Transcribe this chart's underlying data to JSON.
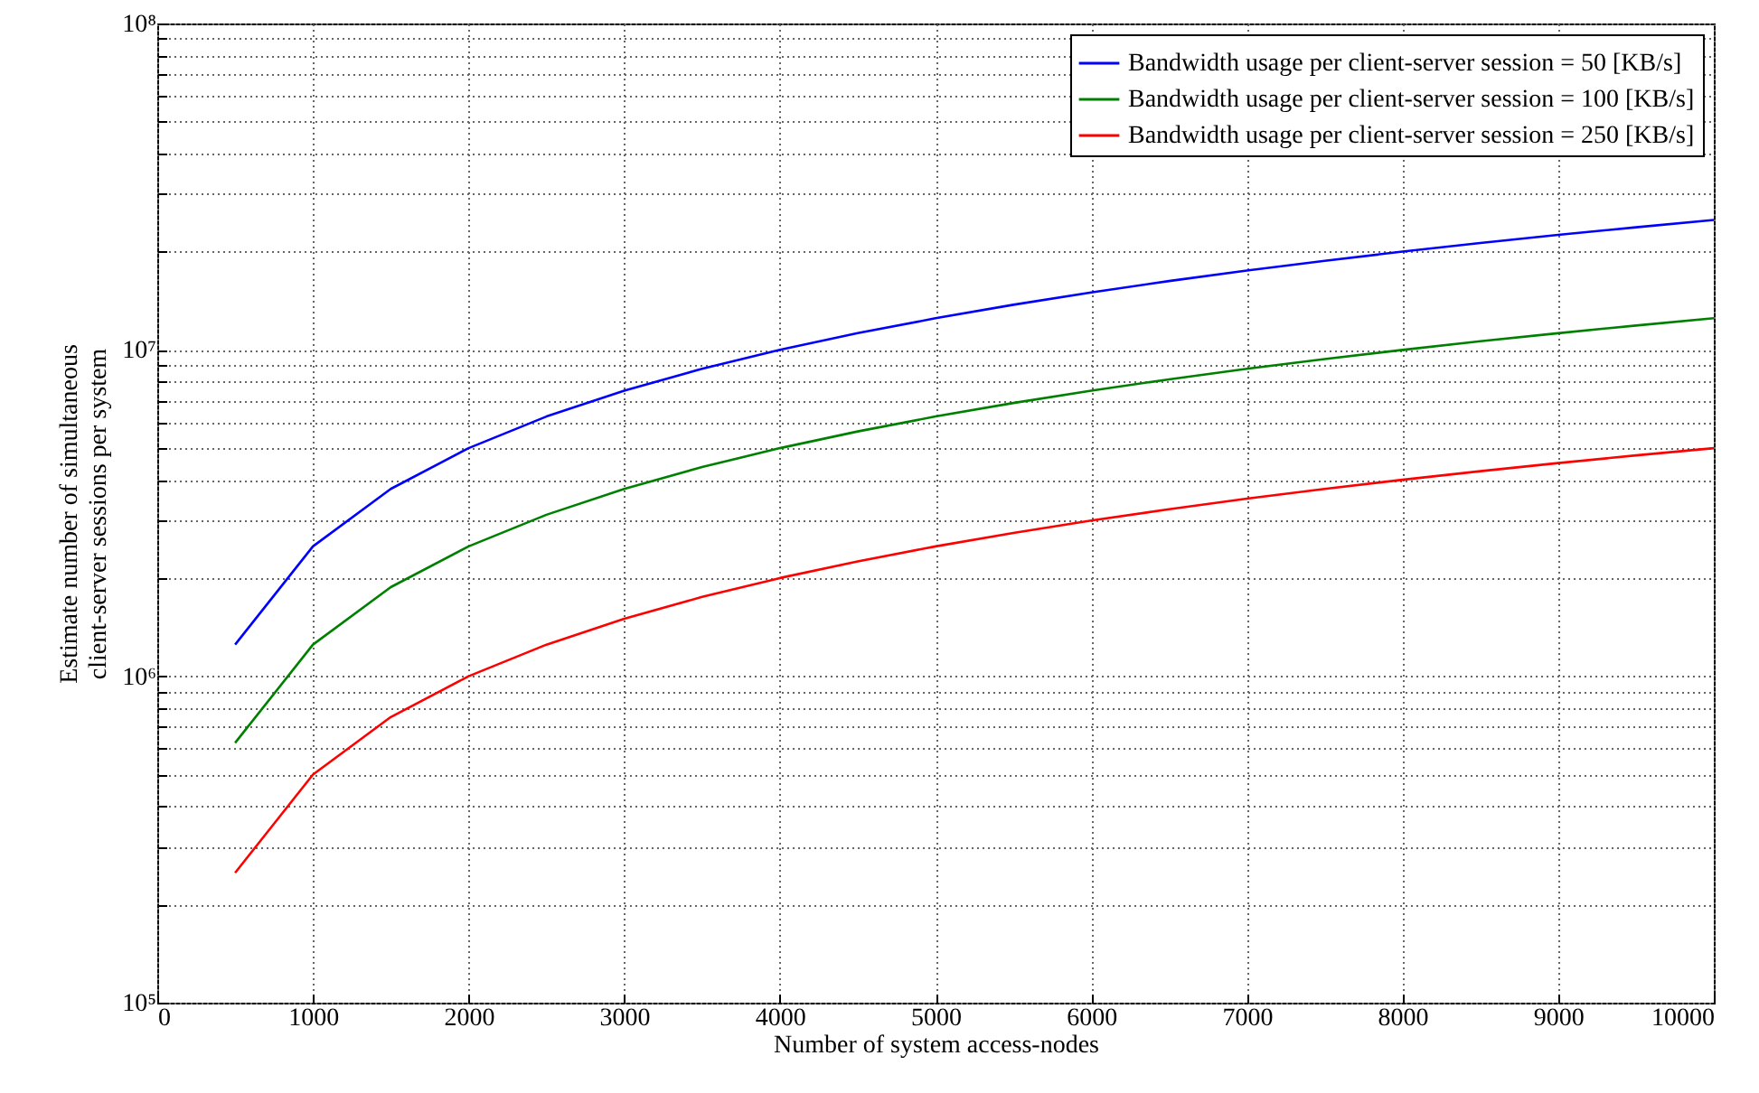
{
  "chart_data": {
    "type": "line",
    "xlabel": "Number of system access-nodes",
    "ylabel": "Estimate number of simultaneous\nclient-server sessions per system",
    "x": [
      500,
      1000,
      1500,
      2000,
      2500,
      3000,
      3500,
      4000,
      4500,
      5000,
      5500,
      6000,
      6500,
      7000,
      7500,
      8000,
      8500,
      9000,
      9500,
      10000
    ],
    "series": [
      {
        "name": "Bandwidth usage per client-server session = 50 [KB/s]",
        "color": "#0000ff",
        "values": [
          1250000,
          2500000,
          3750000,
          5000000,
          6250000,
          7500000,
          8750000,
          10000000,
          11250000,
          12500000,
          13750000,
          15000000,
          16250000,
          17500000,
          18750000,
          20000000,
          21250000,
          22500000,
          23750000,
          25000000
        ]
      },
      {
        "name": "Bandwidth usage per client-server session = 100 [KB/s]",
        "color": "#008000",
        "values": [
          625000,
          1250000,
          1875000,
          2500000,
          3125000,
          3750000,
          4375000,
          5000000,
          5625000,
          6250000,
          6875000,
          7500000,
          8125000,
          8750000,
          9375000,
          10000000,
          10625000,
          11250000,
          11875000,
          12500000
        ]
      },
      {
        "name": "Bandwidth usage per client-server session = 250 [KB/s]",
        "color": "#ff0000",
        "values": [
          250000,
          500000,
          750000,
          1000000,
          1250000,
          1500000,
          1750000,
          2000000,
          2250000,
          2500000,
          2750000,
          3000000,
          3250000,
          3500000,
          3750000,
          4000000,
          4250000,
          4500000,
          4750000,
          5000000
        ]
      }
    ],
    "log": "y",
    "xlim": [
      0,
      10000
    ],
    "xticks": [
      0,
      1000,
      2000,
      3000,
      4000,
      5000,
      6000,
      7000,
      8000,
      9000,
      10000
    ],
    "ylim": [
      100000,
      100000000
    ],
    "yticks": [
      {
        "value": 100000,
        "label": "10⁵"
      },
      {
        "value": 200000,
        "label": null
      },
      {
        "value": 300000,
        "label": null
      },
      {
        "value": 400000,
        "label": null
      },
      {
        "value": 500000,
        "label": null
      },
      {
        "value": 600000,
        "label": null
      },
      {
        "value": 700000,
        "label": null
      },
      {
        "value": 800000,
        "label": null
      },
      {
        "value": 900000,
        "label": null
      },
      {
        "value": 1000000,
        "label": "10⁶"
      },
      {
        "value": 2000000,
        "label": null
      },
      {
        "value": 3000000,
        "label": null
      },
      {
        "value": 4000000,
        "label": null
      },
      {
        "value": 5000000,
        "label": null
      },
      {
        "value": 6000000,
        "label": null
      },
      {
        "value": 7000000,
        "label": null
      },
      {
        "value": 8000000,
        "label": null
      },
      {
        "value": 9000000,
        "label": null
      },
      {
        "value": 10000000,
        "label": "10⁷"
      },
      {
        "value": 20000000,
        "label": null
      },
      {
        "value": 30000000,
        "label": null
      },
      {
        "value": 40000000,
        "label": null
      },
      {
        "value": 50000000,
        "label": null
      },
      {
        "value": 60000000,
        "label": null
      },
      {
        "value": 70000000,
        "label": null
      },
      {
        "value": 80000000,
        "label": null
      },
      {
        "value": 90000000,
        "label": null
      },
      {
        "value": 100000000,
        "label": "10⁸"
      }
    ],
    "grid": true,
    "legend": "top right",
    "line_style": "solid",
    "marker": "none"
  }
}
